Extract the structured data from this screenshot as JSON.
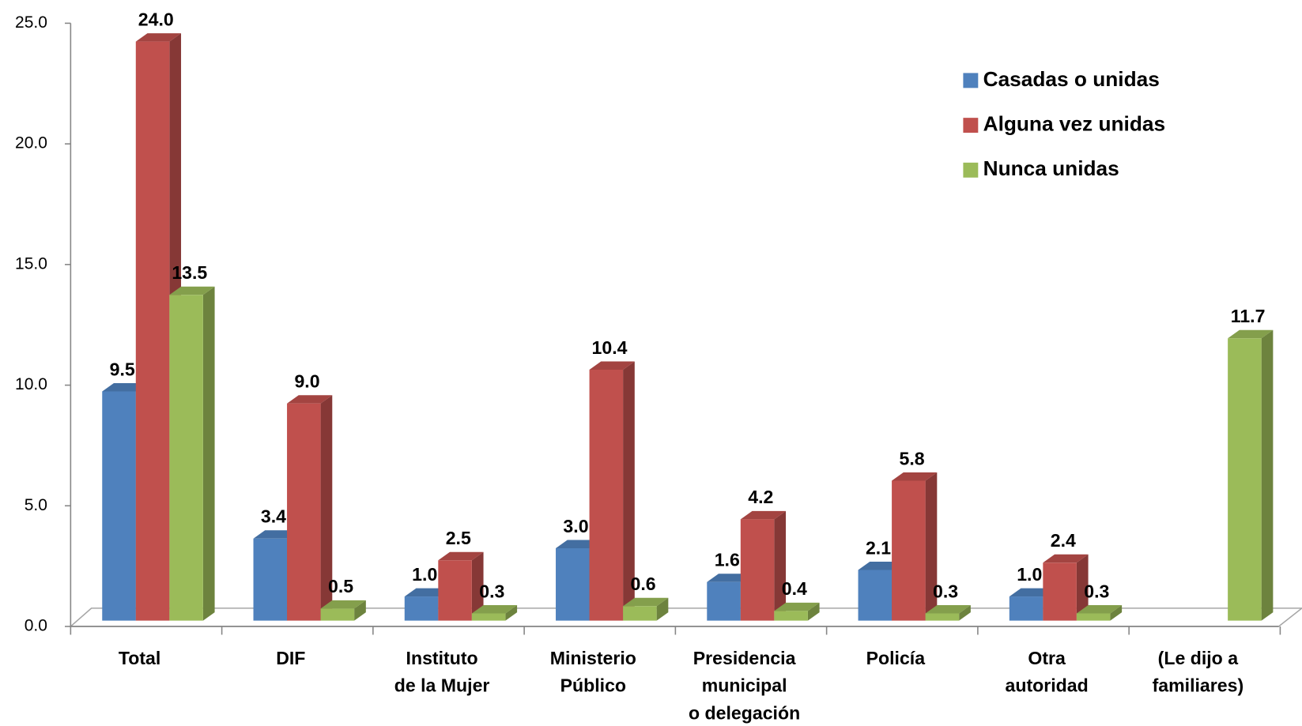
{
  "chart_data": {
    "type": "bar3d",
    "categories": [
      [
        "Total"
      ],
      [
        "DIF"
      ],
      [
        "Instituto",
        "de la Mujer"
      ],
      [
        "Ministerio",
        "Público"
      ],
      [
        "Presidencia",
        "municipal",
        "o delegación"
      ],
      [
        "Policía"
      ],
      [
        "Otra",
        "autoridad"
      ],
      [
        "(Le dijo a",
        "familiares)"
      ]
    ],
    "series": [
      {
        "name": "Casadas o unidas",
        "color": "#4f81bd",
        "values": [
          9.5,
          3.4,
          1.0,
          3.0,
          1.6,
          2.1,
          1.0,
          null
        ],
        "value_labels": [
          "9.5",
          "3.4",
          "1.0",
          "3.0",
          "1.6",
          "2.1",
          "1.0",
          null
        ]
      },
      {
        "name": "Alguna vez unidas",
        "color": "#c0504d",
        "values": [
          24.0,
          9.0,
          2.5,
          10.4,
          4.2,
          5.8,
          2.4,
          null
        ],
        "value_labels": [
          "24.0",
          "9.0",
          "2.5",
          "10.4",
          "4.2",
          "5.8",
          "2.4",
          null
        ]
      },
      {
        "name": "Nunca unidas",
        "color": "#9bbb59",
        "values": [
          13.5,
          0.5,
          0.3,
          0.6,
          0.4,
          0.3,
          0.3,
          11.7
        ],
        "value_labels": [
          "13.5",
          "0.5",
          "0.3",
          "0.6",
          "0.4",
          "0.3",
          "0.3",
          "11.7"
        ]
      }
    ],
    "ylim": [
      0,
      25
    ],
    "yticks": [
      {
        "value": 0,
        "label": "0.0"
      },
      {
        "value": 5,
        "label": "5.0"
      },
      {
        "value": 10,
        "label": "10.0"
      },
      {
        "value": 15,
        "label": "15.0"
      },
      {
        "value": 20,
        "label": "20.0"
      },
      {
        "value": 25,
        "label": "25.0"
      }
    ],
    "legend": "upper right"
  }
}
